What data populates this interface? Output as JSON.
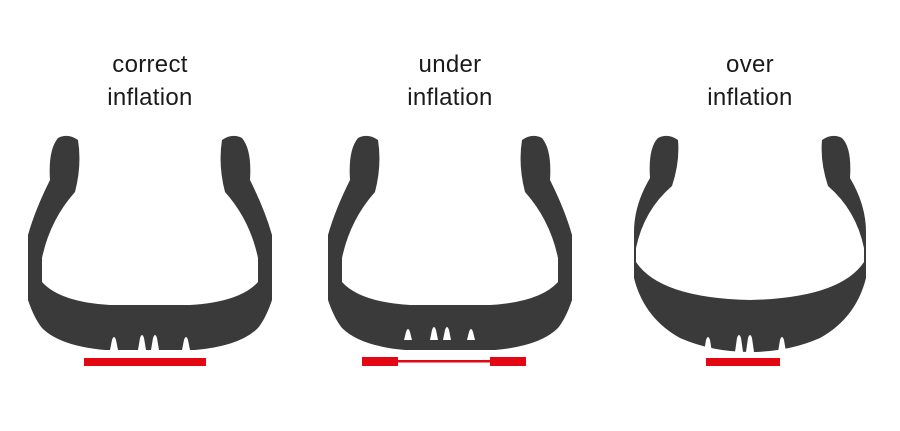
{
  "panels": [
    {
      "line1": "correct",
      "line2": "inflation"
    },
    {
      "line1": "under",
      "line2": "inflation"
    },
    {
      "line1": "over",
      "line2": "inflation"
    }
  ],
  "colors": {
    "tire": "#3a3a3a",
    "contact_patch": "#e30613",
    "text": "#1a1a1a"
  },
  "icons": [
    "tire-cross-section-icon",
    "contact-patch-icon"
  ]
}
